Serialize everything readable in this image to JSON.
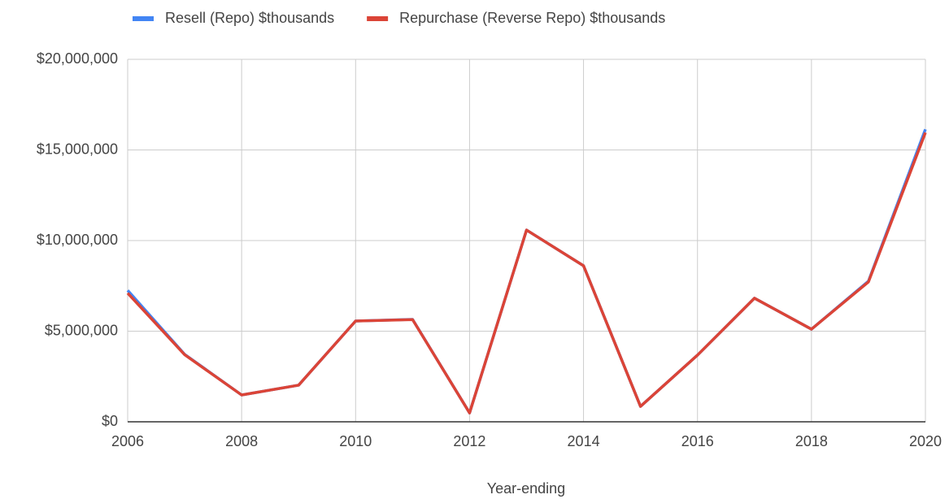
{
  "chart_data": {
    "type": "line",
    "x_label": "Year-ending",
    "x": [
      2006,
      2007,
      2008,
      2009,
      2010,
      2011,
      2012,
      2013,
      2014,
      2015,
      2016,
      2017,
      2018,
      2019,
      2020
    ],
    "series": [
      {
        "name": "Resell (Repo) $thousands",
        "color": "#4285f4",
        "values": [
          7250000,
          3720000,
          1480000,
          2020000,
          5560000,
          5650000,
          490000,
          10580000,
          8610000,
          850000,
          3680000,
          6820000,
          5110000,
          7760000,
          16140000
        ]
      },
      {
        "name": "Repurchase (Reverse Repo) $thousands",
        "color": "#db4437",
        "values": [
          7100000,
          3700000,
          1480000,
          2020000,
          5560000,
          5640000,
          490000,
          10580000,
          8610000,
          850000,
          3680000,
          6820000,
          5110000,
          7720000,
          15960000
        ]
      }
    ],
    "xlim": [
      2006,
      2020
    ],
    "xticks": [
      2006,
      2008,
      2010,
      2012,
      2014,
      2016,
      2018,
      2020
    ],
    "ylim": [
      0,
      20000000
    ],
    "yticks": [
      {
        "value": 0,
        "label": "$0"
      },
      {
        "value": 5000000,
        "label": "$5,000,000"
      },
      {
        "value": 10000000,
        "label": "$10,000,000"
      },
      {
        "value": 15000000,
        "label": "$15,000,000"
      },
      {
        "value": 20000000,
        "label": "$20,000,000"
      }
    ],
    "grid": true,
    "legend": "top"
  }
}
